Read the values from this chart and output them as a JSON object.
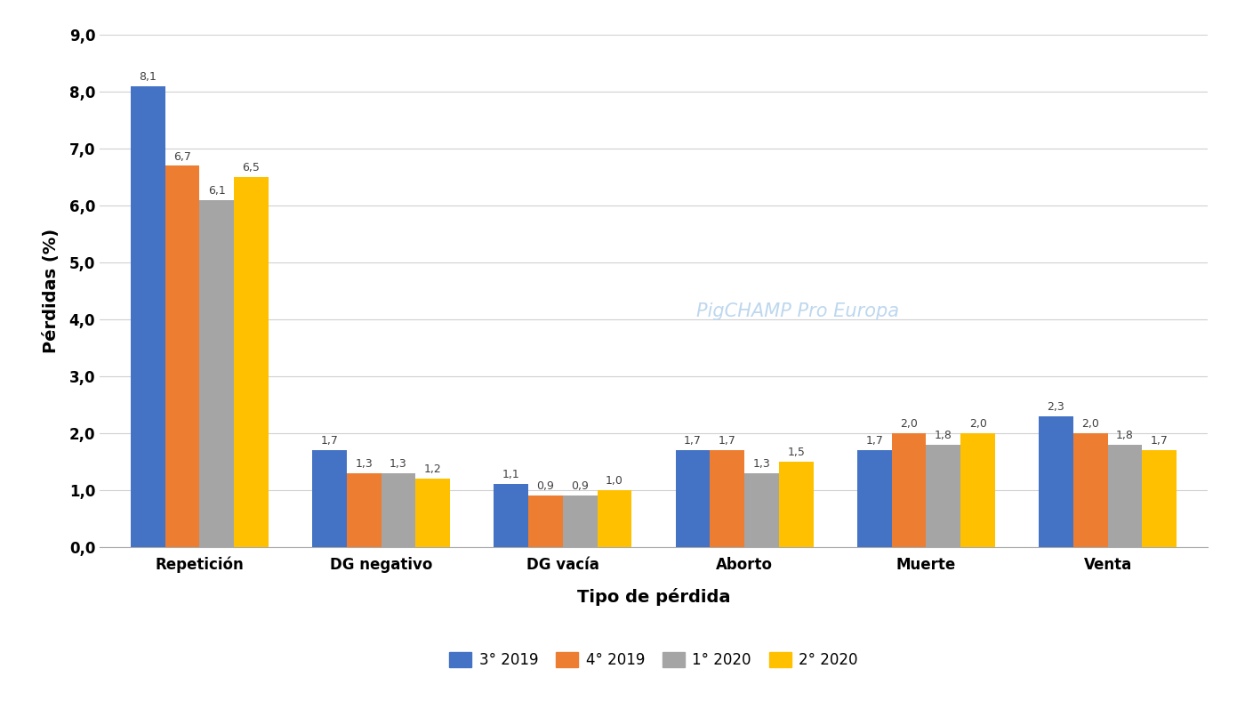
{
  "categories": [
    "Repetición",
    "DG negativo",
    "DG vacía",
    "Aborto",
    "Muerte",
    "Venta"
  ],
  "series": [
    {
      "label": "3° 2019",
      "color": "#4472C4",
      "values": [
        8.1,
        1.7,
        1.1,
        1.7,
        1.7,
        2.3
      ]
    },
    {
      "label": "4° 2019",
      "color": "#ED7D31",
      "values": [
        6.7,
        1.3,
        0.9,
        1.7,
        2.0,
        2.0
      ]
    },
    {
      "label": "1° 2020",
      "color": "#A5A5A5",
      "values": [
        6.1,
        1.3,
        0.9,
        1.3,
        1.8,
        1.8
      ]
    },
    {
      "label": "2° 2020",
      "color": "#FFC000",
      "values": [
        6.5,
        1.2,
        1.0,
        1.5,
        2.0,
        1.7
      ]
    }
  ],
  "ylabel": "Pérdidas (%)",
  "xlabel": "Tipo de pérdida",
  "ylim": [
    0,
    9.0
  ],
  "yticks": [
    0.0,
    1.0,
    2.0,
    3.0,
    4.0,
    5.0,
    6.0,
    7.0,
    8.0,
    9.0
  ],
  "ytick_labels": [
    "0,0",
    "1,0",
    "2,0",
    "3,0",
    "4,0",
    "5,0",
    "6,0",
    "7,0",
    "8,0",
    "9,0"
  ],
  "watermark_text": "PigCHAMP Pro Europa",
  "watermark_color": "#BDD7EE",
  "background_color": "#FFFFFF",
  "grid_color": "#D0D0D0",
  "bar_width": 0.19,
  "label_fontsize": 9.0,
  "axis_label_fontsize": 14,
  "tick_fontsize": 12,
  "legend_fontsize": 12
}
